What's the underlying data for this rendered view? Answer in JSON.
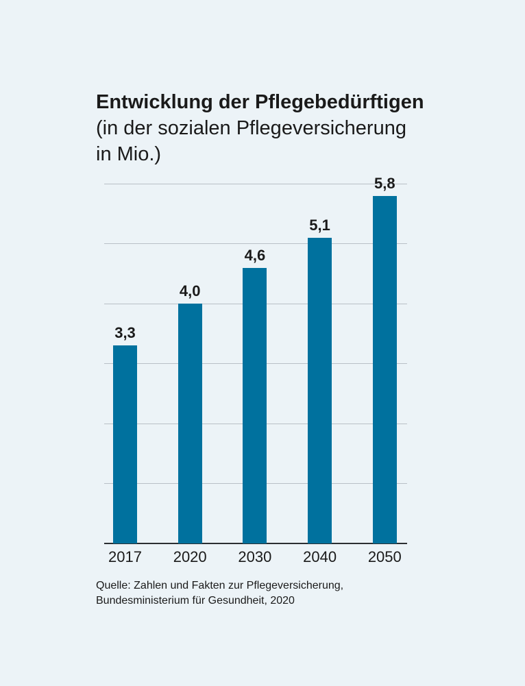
{
  "title": {
    "line1": "Entwicklung der Pflegebedürftigen",
    "line2": "(in der sozialen Pflegeversicherung",
    "line3": "in Mio.)"
  },
  "source": {
    "line1": "Quelle: Zahlen und Fakten zur Pflegeversicherung,",
    "line2": "Bundesministerium für Gesundheit, 2020"
  },
  "chart_data": {
    "type": "bar",
    "title": "Entwicklung der Pflegebedürftigen (in der sozialen Pflegeversicherung in Mio.)",
    "categories": [
      "2017",
      "2020",
      "2030",
      "2040",
      "2050"
    ],
    "values": [
      3.3,
      4.0,
      4.6,
      5.1,
      5.8
    ],
    "value_labels": [
      "3,3",
      "4,0",
      "4,6",
      "5,1",
      "5,8"
    ],
    "xlabel": "",
    "ylabel": "",
    "ylim": [
      0,
      6
    ],
    "gridline_values": [
      1,
      2,
      3,
      4,
      5,
      6
    ],
    "grid": true,
    "legend": "none",
    "bar_color": "#00719E"
  },
  "colors": {
    "background": "#ECF3F7",
    "bar": "#00719E",
    "gridline": "#B8BFC6",
    "axis": "#2B2E31",
    "text": "#1A1A1A"
  }
}
